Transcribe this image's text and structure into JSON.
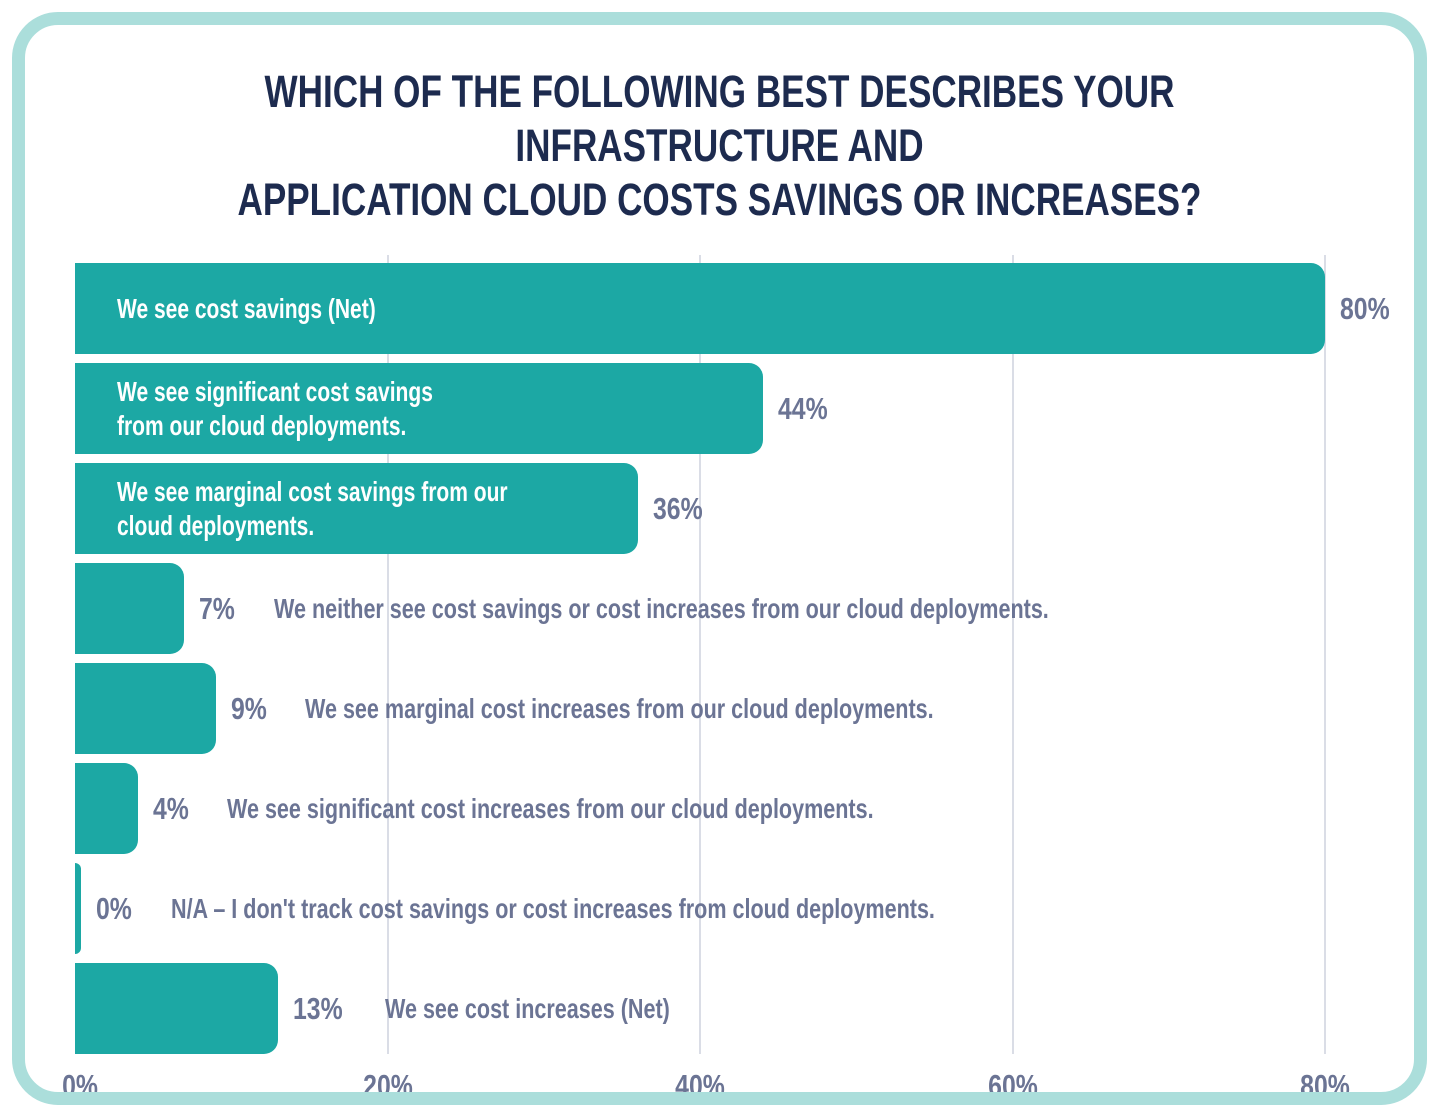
{
  "header": {
    "title_line1": "WHICH OF THE FOLLOWING BEST DESCRIBES YOUR INFRASTRUCTURE AND",
    "title_line2": "APPLICATION CLOUD COSTS SAVINGS OR INCREASES?"
  },
  "colors": {
    "bar": "#1ca8a4",
    "card_border": "#abdedb",
    "title_text": "#1d2b4f",
    "label_text": "#6b7494",
    "bar_text": "#ffffff",
    "gridline": "#dadde6"
  },
  "chart_data": {
    "type": "bar",
    "orientation": "horizontal",
    "title": "WHICH OF THE FOLLOWING BEST DESCRIBES YOUR INFRASTRUCTURE AND APPLICATION CLOUD COSTS SAVINGS OR INCREASES?",
    "xlim": [
      0,
      80
    ],
    "x_ticks": [
      "0%",
      "20%",
      "40%",
      "60%",
      "80%"
    ],
    "grid": true,
    "bars": [
      {
        "category": "We see cost savings (Net)",
        "line1": "We see cost savings (Net)",
        "line2": "",
        "value": 80,
        "value_label": "80%",
        "label_position": "inside"
      },
      {
        "category": "We see significant cost savings from our cloud deployments.",
        "line1": "We see significant cost savings",
        "line2": "from our cloud deployments.",
        "value": 44,
        "value_label": "44%",
        "label_position": "inside"
      },
      {
        "category": "We see marginal cost savings from our cloud deployments.",
        "line1": "We see marginal cost savings from our",
        "line2": "cloud deployments.",
        "value": 36,
        "value_label": "36%",
        "label_position": "inside"
      },
      {
        "category": "We neither see cost savings or cost increases from our cloud deployments.",
        "value": 7,
        "value_label": "7%",
        "label_position": "outside"
      },
      {
        "category": "We see marginal cost increases from our cloud deployments.",
        "value": 9,
        "value_label": "9%",
        "label_position": "outside"
      },
      {
        "category": "We see significant cost increases from our cloud deployments.",
        "value": 4,
        "value_label": "4%",
        "label_position": "outside"
      },
      {
        "category": "N/A – I don't track cost savings or cost increases from cloud deployments.",
        "value": 0,
        "value_label": "0%",
        "label_position": "outside"
      },
      {
        "category": "We see cost increases (Net)",
        "value": 13,
        "value_label": "13%",
        "label_position": "outside"
      }
    ]
  }
}
